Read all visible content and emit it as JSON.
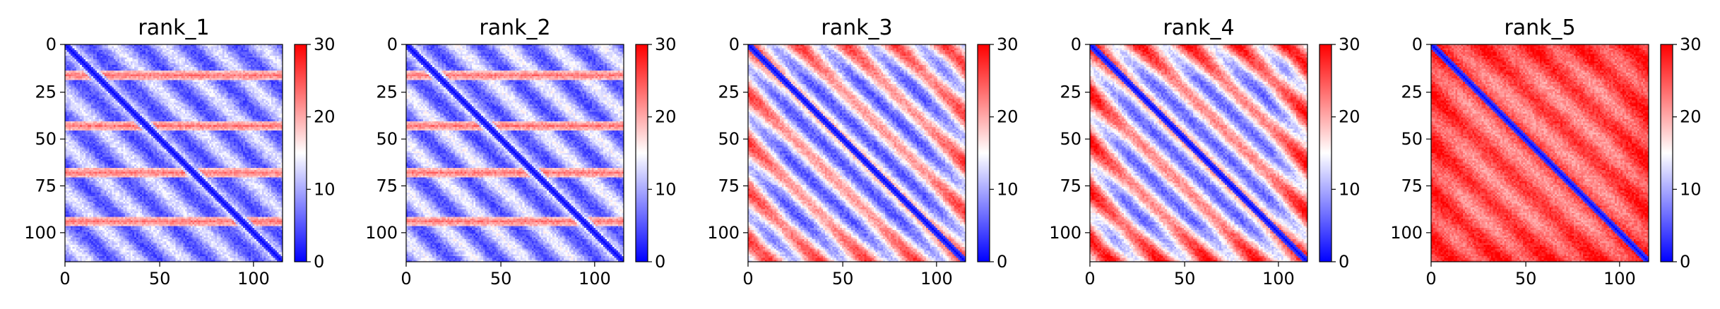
{
  "chart_data": [
    {
      "type": "heatmap",
      "title": "rank_1",
      "n": 116,
      "xticks": [
        0,
        50,
        100
      ],
      "yticks": [
        0,
        25,
        50,
        75,
        100
      ],
      "colorbar": {
        "min": 0,
        "max": 30,
        "ticks": [
          0,
          10,
          20,
          30
        ],
        "colormap": "bwr"
      },
      "pattern": {
        "base": 9,
        "offdiag_amp": 4.5,
        "band_rows": [
          16,
          43,
          68,
          94
        ],
        "band_value": 23,
        "edge_boost": 0,
        "period": 26
      }
    },
    {
      "type": "heatmap",
      "title": "rank_2",
      "n": 116,
      "xticks": [
        0,
        50,
        100
      ],
      "yticks": [
        0,
        25,
        50,
        75,
        100
      ],
      "colorbar": {
        "min": 0,
        "max": 30,
        "ticks": [
          0,
          10,
          20,
          30
        ],
        "colormap": "bwr"
      },
      "pattern": {
        "base": 9.5,
        "offdiag_amp": 5,
        "band_rows": [
          16,
          43,
          68,
          94
        ],
        "band_value": 23,
        "edge_boost": 0,
        "period": 26
      }
    },
    {
      "type": "heatmap",
      "title": "rank_3",
      "n": 116,
      "xticks": [
        0,
        50,
        100
      ],
      "yticks": [
        0,
        25,
        50,
        75,
        100
      ],
      "colorbar": {
        "min": 0,
        "max": 30,
        "ticks": [
          0,
          10,
          20,
          30
        ],
        "colormap": "bwr"
      },
      "pattern": {
        "base": 13,
        "offdiag_amp": 8,
        "band_rows": [],
        "band_value": 0,
        "edge_boost": 6,
        "period": 26
      }
    },
    {
      "type": "heatmap",
      "title": "rank_4",
      "n": 116,
      "xticks": [
        0,
        50,
        100
      ],
      "yticks": [
        0,
        25,
        50,
        75,
        100
      ],
      "colorbar": {
        "min": 0,
        "max": 30,
        "ticks": [
          0,
          10,
          20,
          30
        ],
        "colormap": "bwr"
      },
      "pattern": {
        "base": 14,
        "offdiag_amp": 8,
        "band_rows": [],
        "band_value": 0,
        "edge_boost": 8,
        "period": 26
      }
    },
    {
      "type": "heatmap",
      "title": "rank_5",
      "n": 116,
      "xticks": [
        0,
        50,
        100
      ],
      "yticks": [
        0,
        25,
        50,
        75,
        100
      ],
      "colorbar": {
        "min": 0,
        "max": 30,
        "ticks": [
          0,
          10,
          20,
          30
        ],
        "colormap": "bwr"
      },
      "pattern": {
        "base": 24,
        "offdiag_amp": 3,
        "band_rows": [],
        "band_value": 0,
        "edge_boost": 3,
        "period": 26
      }
    }
  ]
}
